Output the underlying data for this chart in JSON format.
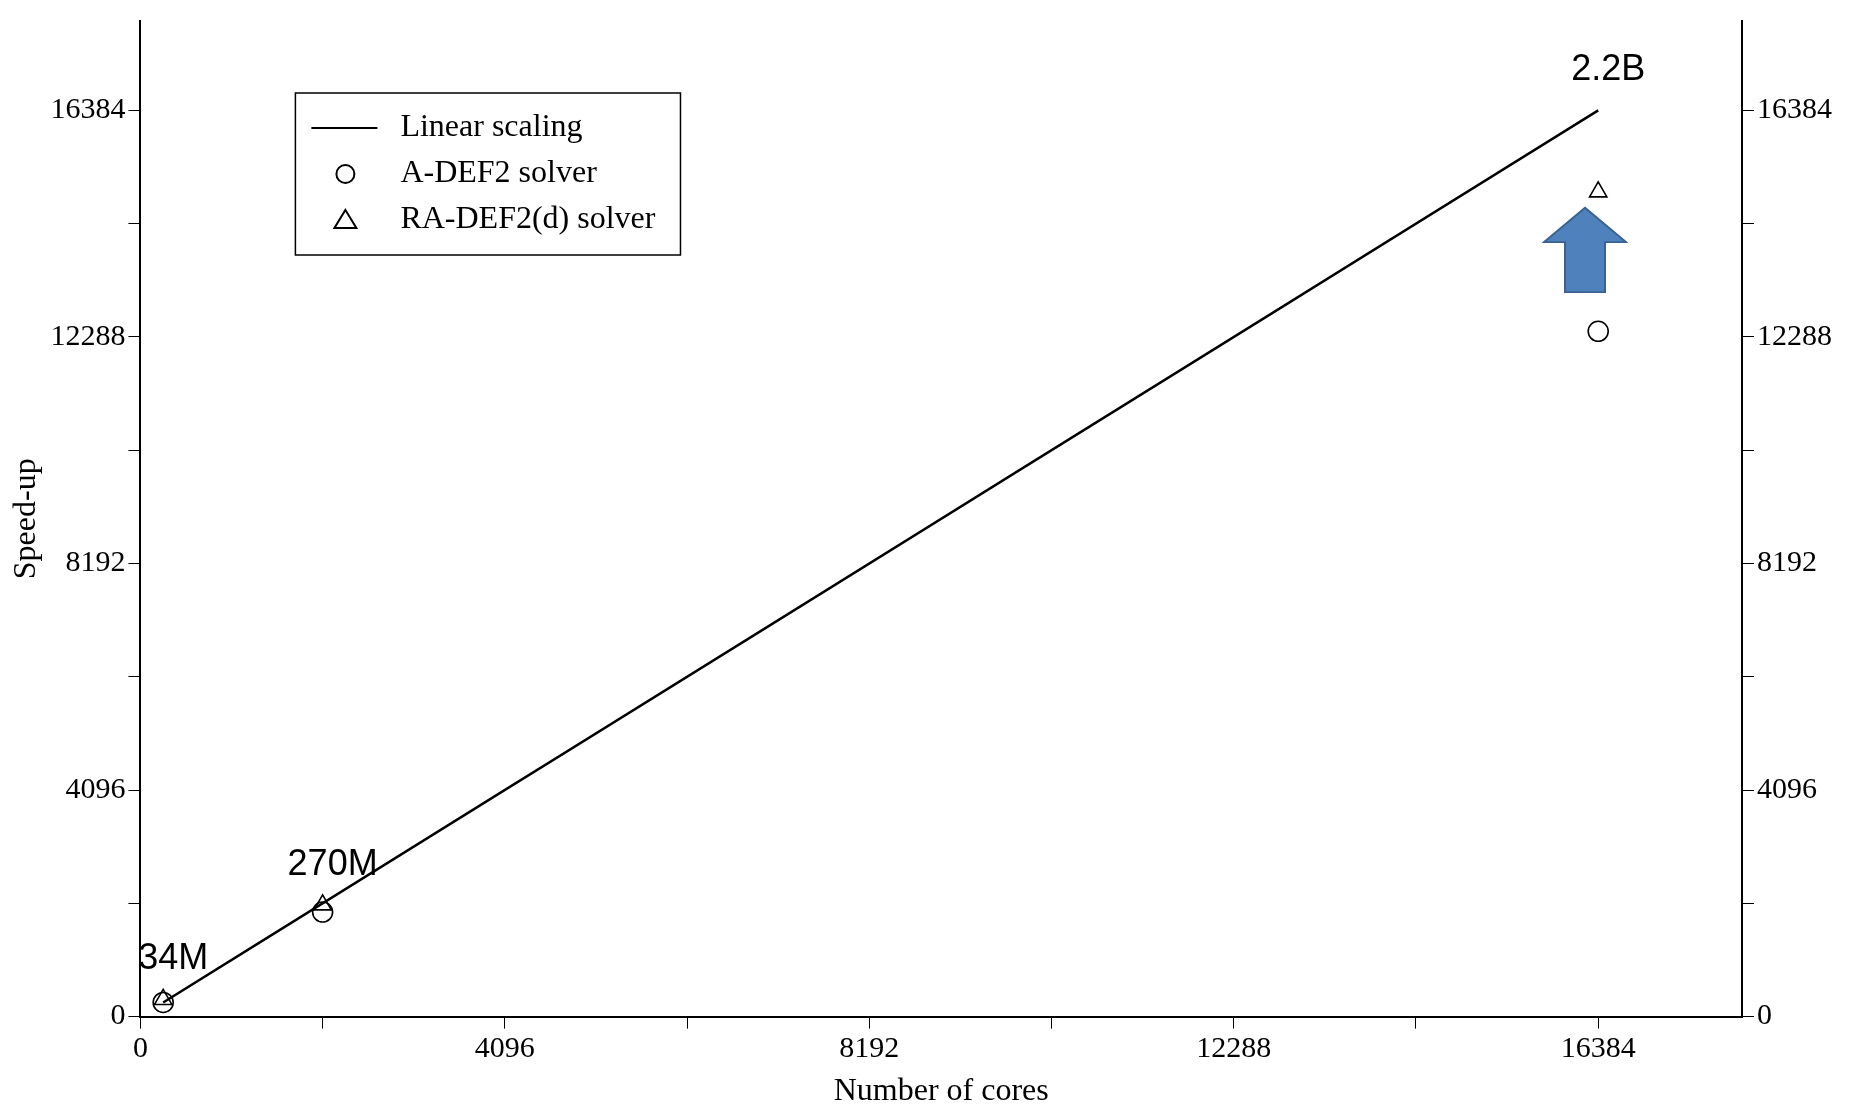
{
  "chart_data": {
    "type": "scatter",
    "xlabel": "Number of cores",
    "ylabel": "Speed-up",
    "xlim": [
      0,
      18000
    ],
    "ylim": [
      0,
      18000
    ],
    "y2lim": [
      0,
      18000
    ],
    "xticks": [
      0,
      {
        "value": 2048,
        "label": null
      },
      4096,
      {
        "value": 6144,
        "label": null
      },
      8192,
      {
        "value": 10240,
        "label": null
      },
      12288,
      {
        "value": 14336,
        "label": null
      },
      16384
    ],
    "yticks": [
      0,
      {
        "value": 2048,
        "label": null
      },
      4096,
      {
        "value": 6144,
        "label": null
      },
      8192,
      {
        "value": 10240,
        "label": null
      },
      12288,
      {
        "value": 14336,
        "label": null
      },
      16384
    ],
    "y2ticks": [
      0,
      {
        "value": 2048,
        "label": null
      },
      4096,
      {
        "value": 6144,
        "label": null
      },
      8192,
      {
        "value": 10240,
        "label": null
      },
      12288,
      {
        "value": 14336,
        "label": null
      },
      16384
    ],
    "grid": false,
    "legend": "top left",
    "series": [
      {
        "name": "Linear scaling",
        "type": "line",
        "marker": "none",
        "line_style": "solid",
        "color": "#000000",
        "x": [
          256,
          16384
        ],
        "values": [
          256,
          16384
        ]
      },
      {
        "name": "A-DEF2 solver",
        "marker": "circle",
        "color": "#000000",
        "x": [
          256,
          2048,
          16384
        ],
        "values": [
          256,
          1890,
          12390
        ]
      },
      {
        "name": "RA-DEF2(d) solver",
        "marker": "triangle",
        "color": "#000000",
        "x": [
          256,
          2048,
          16384
        ],
        "values": [
          310,
          2020,
          14910
        ]
      }
    ],
    "annotations": [
      {
        "text": "34M",
        "x": 256,
        "y": 310
      },
      {
        "text": "270M",
        "x": 2048,
        "y": 2020
      },
      {
        "text": "2.2B",
        "x": 16384,
        "y": 16384
      }
    ]
  }
}
